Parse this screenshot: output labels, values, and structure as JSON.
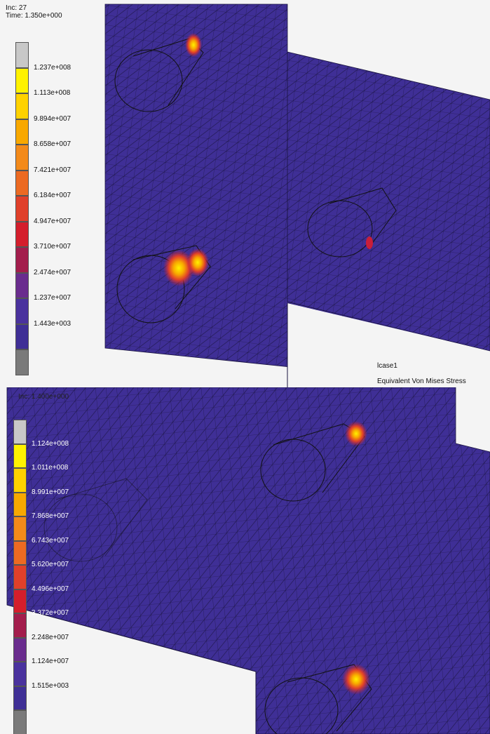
{
  "top": {
    "inc_label": "Inc:  27",
    "time_label": "Time:  1.350e+000",
    "legend": [
      {
        "label": "",
        "color": "#c8c8c8"
      },
      {
        "label": "1.237e+008",
        "color": "#fff200"
      },
      {
        "label": "1.113e+008",
        "color": "#ffd200"
      },
      {
        "label": "9.894e+007",
        "color": "#f8a800"
      },
      {
        "label": "8.658e+007",
        "color": "#f38a1a"
      },
      {
        "label": "7.421e+007",
        "color": "#ec6a22"
      },
      {
        "label": "6.184e+007",
        "color": "#e0402a"
      },
      {
        "label": "4.947e+007",
        "color": "#d41e2c"
      },
      {
        "label": "3.710e+007",
        "color": "#a31d4c"
      },
      {
        "label": "2.474e+007",
        "color": "#6a2c8e"
      },
      {
        "label": "1.237e+007",
        "color": "#4a329e"
      },
      {
        "label": "1.443e+003",
        "color": "#3f2f96"
      },
      {
        "label": "",
        "color": "#7a7a7a"
      }
    ],
    "caption_line1": "lcase1",
    "caption_line2": "Equivalent Von Mises Stress"
  },
  "bottom": {
    "inc_label": "Inc:  1.400e+000",
    "legend": [
      {
        "label": "",
        "color": "#c8c8c8"
      },
      {
        "label": "1.124e+008",
        "color": "#fff200"
      },
      {
        "label": "1.011e+008",
        "color": "#ffd200"
      },
      {
        "label": "8.991e+007",
        "color": "#f8a800"
      },
      {
        "label": "7.868e+007",
        "color": "#f38a1a"
      },
      {
        "label": "6.743e+007",
        "color": "#ec6a22"
      },
      {
        "label": "5.620e+007",
        "color": "#e0402a"
      },
      {
        "label": "4.496e+007",
        "color": "#d41e2c"
      },
      {
        "label": "3.372e+007",
        "color": "#a31d4c"
      },
      {
        "label": "2.248e+007",
        "color": "#6a2c8e"
      },
      {
        "label": "1.124e+007",
        "color": "#4a329e"
      },
      {
        "label": "1.515e+003",
        "color": "#3f2f96"
      },
      {
        "label": "",
        "color": "#7a7a7a"
      }
    ]
  },
  "colors": {
    "mesh_fill": "#3f2f96",
    "mesh_line": "#1a1440",
    "hot_core": "#fff200",
    "hot_mid": "#f05a1e",
    "hot_outer": "#c81e3a"
  }
}
